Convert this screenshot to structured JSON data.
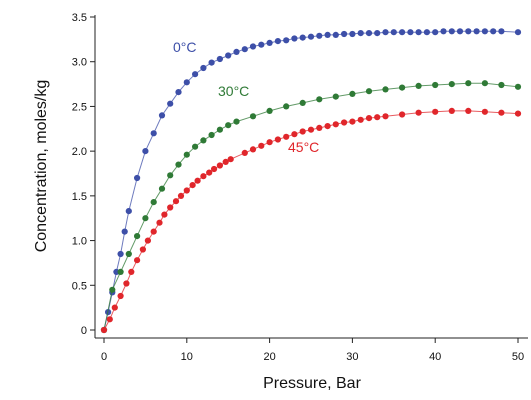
{
  "chart_data": {
    "type": "line",
    "xlabel": "Pressure, Bar",
    "ylabel": "Concentration, moles/kg",
    "xlim": [
      0,
      50
    ],
    "ylim": [
      0,
      3.5
    ],
    "x_ticks": [
      "0",
      "10",
      "20",
      "30",
      "40",
      "50"
    ],
    "y_ticks": [
      "0",
      "0.5",
      "1.0",
      "1.5",
      "2.0",
      "2.5",
      "3.0",
      "3.5"
    ],
    "grid": false,
    "series": [
      {
        "name": "0°C",
        "color": "#3d4fa8",
        "x": [
          0,
          0.5,
          1,
          1.5,
          2,
          2.5,
          3,
          4,
          5,
          6,
          7,
          8,
          9,
          10,
          11,
          12,
          13,
          14,
          15,
          16,
          17,
          18,
          19,
          20,
          21,
          22,
          23,
          24,
          25,
          26,
          27,
          28,
          29,
          30,
          31,
          32,
          33,
          34,
          35,
          36,
          37,
          38,
          39,
          40,
          41,
          42,
          43,
          44,
          45,
          46,
          47,
          48,
          50
        ],
        "y": [
          0,
          0.2,
          0.42,
          0.65,
          0.85,
          1.1,
          1.33,
          1.7,
          2.0,
          2.2,
          2.4,
          2.53,
          2.66,
          2.77,
          2.86,
          2.93,
          2.99,
          3.03,
          3.07,
          3.11,
          3.14,
          3.17,
          3.19,
          3.21,
          3.23,
          3.24,
          3.26,
          3.27,
          3.28,
          3.29,
          3.3,
          3.3,
          3.31,
          3.31,
          3.32,
          3.32,
          3.32,
          3.33,
          3.33,
          3.33,
          3.33,
          3.33,
          3.33,
          3.33,
          3.34,
          3.34,
          3.34,
          3.34,
          3.34,
          3.34,
          3.34,
          3.34,
          3.33
        ]
      },
      {
        "name": "30°C",
        "color": "#2f7a36",
        "x": [
          0,
          1,
          2,
          3,
          4,
          5,
          6,
          7,
          8,
          9,
          10,
          11,
          12,
          13,
          14,
          15,
          16,
          18,
          20,
          22,
          24,
          26,
          28,
          30,
          32,
          34,
          36,
          38,
          40,
          42,
          44,
          46,
          48,
          50
        ],
        "y": [
          0,
          0.45,
          0.65,
          0.85,
          1.05,
          1.25,
          1.43,
          1.58,
          1.73,
          1.85,
          1.96,
          2.05,
          2.12,
          2.18,
          2.24,
          2.29,
          2.33,
          2.39,
          2.45,
          2.5,
          2.54,
          2.58,
          2.61,
          2.64,
          2.67,
          2.69,
          2.71,
          2.73,
          2.74,
          2.75,
          2.76,
          2.76,
          2.74,
          2.72
        ]
      },
      {
        "name": "45°C",
        "color": "#e0262b",
        "x": [
          0,
          0.7,
          1.3,
          2,
          2.7,
          3.3,
          4,
          4.7,
          5.3,
          6,
          6.7,
          7.3,
          8,
          8.7,
          9.3,
          10,
          10.7,
          11.3,
          12,
          12.7,
          13.3,
          14,
          14.7,
          15.3,
          17,
          18,
          19,
          20,
          21,
          22,
          23,
          24,
          25,
          26,
          27,
          28,
          29,
          30,
          31,
          32,
          33,
          34,
          36,
          38,
          40,
          42,
          44,
          46,
          48,
          50
        ],
        "y": [
          0,
          0.12,
          0.25,
          0.38,
          0.52,
          0.65,
          0.78,
          0.9,
          1.0,
          1.1,
          1.2,
          1.29,
          1.37,
          1.44,
          1.5,
          1.56,
          1.62,
          1.67,
          1.72,
          1.76,
          1.8,
          1.84,
          1.88,
          1.91,
          1.98,
          2.02,
          2.06,
          2.1,
          2.13,
          2.16,
          2.19,
          2.22,
          2.24,
          2.26,
          2.28,
          2.3,
          2.32,
          2.33,
          2.35,
          2.37,
          2.38,
          2.39,
          2.41,
          2.43,
          2.44,
          2.45,
          2.45,
          2.44,
          2.43,
          2.42
        ]
      }
    ],
    "annotations": [
      {
        "text": "0°C",
        "series": 0
      },
      {
        "text": "30°C",
        "series": 1
      },
      {
        "text": "45°C",
        "series": 2
      }
    ]
  }
}
